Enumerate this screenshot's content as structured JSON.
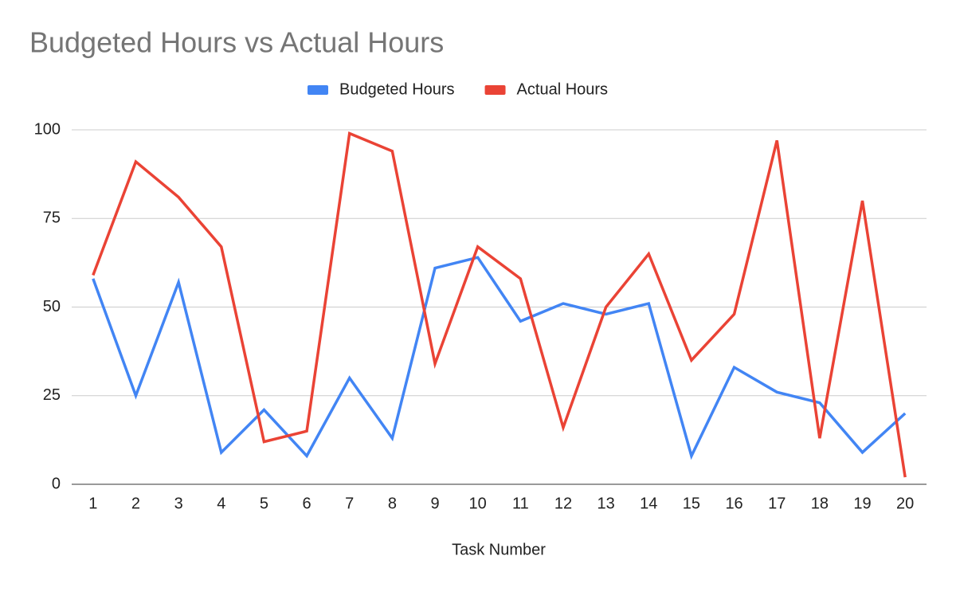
{
  "chart_data": {
    "type": "line",
    "title": "Budgeted Hours vs Actual Hours",
    "x_label": "Task Number",
    "categories": [
      "1",
      "2",
      "3",
      "4",
      "5",
      "6",
      "7",
      "8",
      "9",
      "10",
      "11",
      "12",
      "13",
      "14",
      "15",
      "16",
      "17",
      "18",
      "19",
      "20"
    ],
    "series": [
      {
        "name": "Budgeted Hours",
        "color": "#4285f4",
        "values": [
          58,
          25,
          57,
          9,
          21,
          8,
          30,
          13,
          61,
          64,
          46,
          51,
          48,
          51,
          8,
          33,
          26,
          23,
          9,
          20
        ]
      },
      {
        "name": "Actual Hours",
        "color": "#ea4335",
        "values": [
          59,
          91,
          81,
          67,
          12,
          15,
          99,
          94,
          34,
          67,
          58,
          16,
          50,
          65,
          35,
          48,
          97,
          13,
          80,
          2
        ]
      }
    ],
    "ylim": [
      0,
      100
    ],
    "yticks": [
      0,
      25,
      50,
      75,
      100
    ],
    "grid": true,
    "legend": "top"
  }
}
